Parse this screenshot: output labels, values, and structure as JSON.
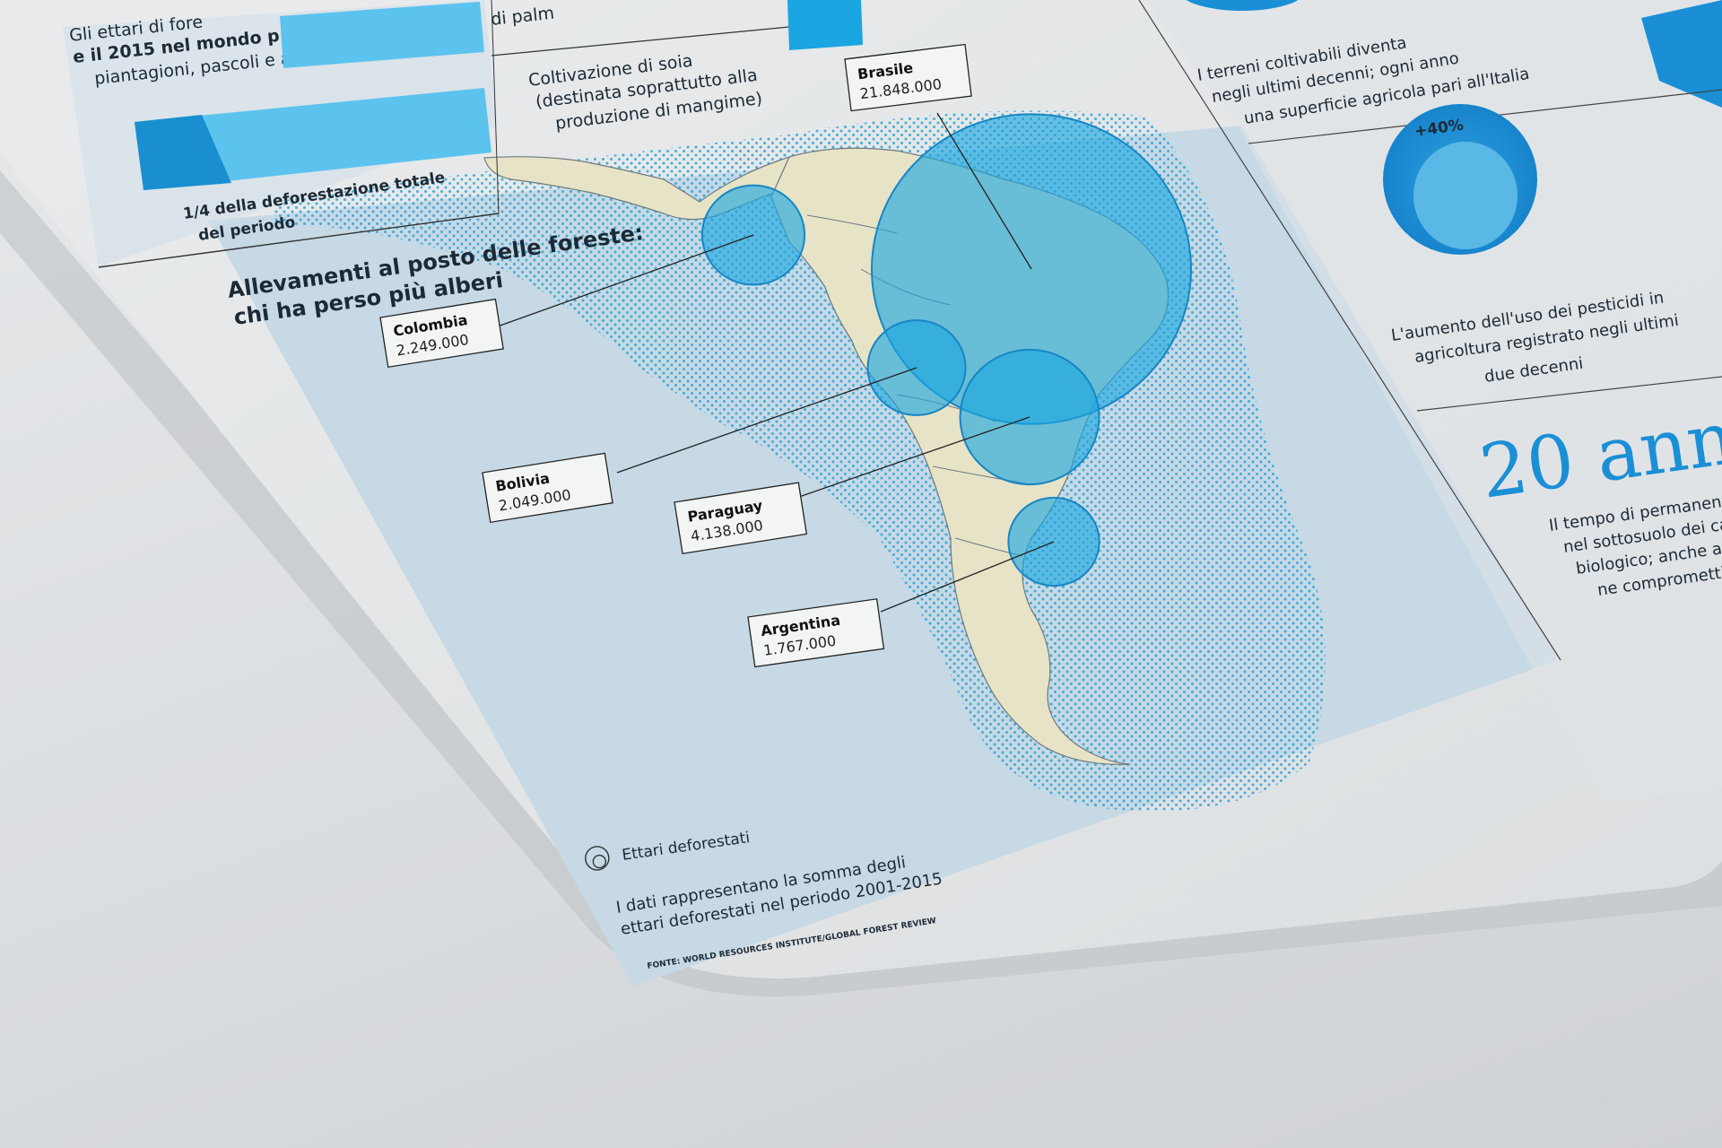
{
  "top_left": {
    "intro_line1": "Gli ettari di fore",
    "intro_line2": "e il 2015 nel mondo p",
    "intro_line3": "piantagioni, pascoli e allevam",
    "bar_caption_line1": "1/4 della deforestazione totale",
    "bar_caption_line2": "del periodo",
    "colors": {
      "bar_dark": "#1a8fcf",
      "bar_light": "#5cc3ee"
    }
  },
  "top_middle": {
    "partial_text": "di palm",
    "soy_line1": "Coltivazione di soia",
    "soy_line2": "(destinata soprattutto alla",
    "soy_line3": "produzione di mangime)"
  },
  "map": {
    "title_line1": "Allevamenti al posto delle foreste:",
    "title_line2": "chi ha perso più alberi",
    "legend_label": "Ettari deforestati",
    "note_line1": "I dati rappresentano la somma degli",
    "note_line2": "ettari deforestati nel periodo 2001-2015",
    "source": "FONTE: WORLD RESOURCES INSTITUTE/GLOBAL FOREST REVIEW",
    "colors": {
      "bubble": "#1aa6e0",
      "land": "#e7e3c7",
      "sea": "#c4d8e4",
      "dots": "#2aa3d6"
    },
    "countries": [
      {
        "name": "Brasile",
        "value": "21.848.000",
        "hectares": 21848000
      },
      {
        "name": "Colombia",
        "value": "2.249.000",
        "hectares": 2249000
      },
      {
        "name": "Bolivia",
        "value": "2.049.000",
        "hectares": 2049000
      },
      {
        "name": "Paraguay",
        "value": "4.138.000",
        "hectares": 4138000
      },
      {
        "name": "Argentina",
        "value": "1.767.000",
        "hectares": 1767000
      }
    ]
  },
  "right_column": {
    "terreni_line1": "I terreni coltivabili diventa",
    "terreni_line2": "negli ultimi decenni; ogni anno",
    "terreni_line3": "una superficie agricola pari all'Italia",
    "pesticide_badge": "+40%",
    "pesticide_line1": "L'aumento dell'uso dei pesticidi in",
    "pesticide_line2": "agricoltura registrato negli ultimi",
    "pesticide_line3": "due decenni",
    "big_number": "20 ann",
    "perm_line1": "Il tempo di permanenza",
    "perm_line2": "nel sottosuolo dei cam",
    "perm_line3": "biologico; anche a bas",
    "perm_line4": "ne comprometti",
    "colors": {
      "accent": "#1a8fd6"
    }
  }
}
